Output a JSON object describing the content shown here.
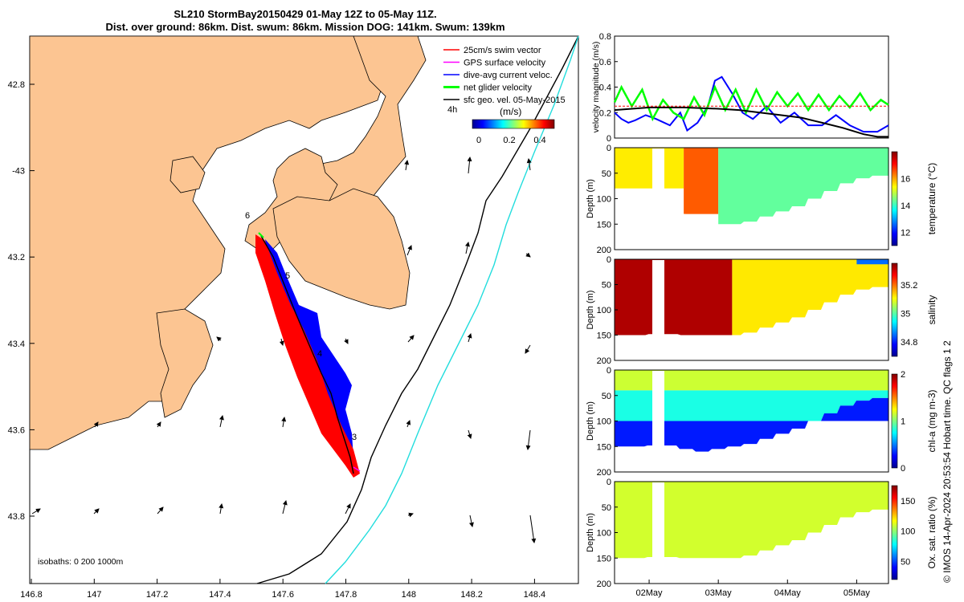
{
  "title_line1": "SL210 StormBay20150429 01-May 12Z to 05-May 11Z.",
  "title_line2": "Dist. over ground: 86km. Dist. swum: 86km. Mission DOG: 141km. Swum: 139km",
  "map": {
    "lon_ticks": [
      "146.8",
      "147",
      "147.2",
      "147.4",
      "147.6",
      "147.8",
      "148",
      "148.2",
      "148.4"
    ],
    "lat_ticks": [
      "42.8",
      "-43",
      "43.2",
      "43.4",
      "43.6",
      "43.8"
    ],
    "legend": [
      {
        "label": "25cm/s swim vector",
        "color": "#ff0000"
      },
      {
        "label": "GPS surface velocity",
        "color": "#ff00ff"
      },
      {
        "label": "dive-avg current veloc.",
        "color": "#0000ff"
      },
      {
        "label": "net glider velocity",
        "color": "#00ff00"
      },
      {
        "label": "sfc geo. vel. 05-May-2015",
        "color": "#000000"
      }
    ],
    "colorbar_label_left": "4h",
    "colorbar_units": "(m/s)",
    "colorbar_ticks": [
      "0",
      "0.2",
      "0.4"
    ],
    "day_labels": [
      "6",
      "5",
      "4",
      "3"
    ],
    "isobath_text": "isobaths: 0   200  1000m"
  },
  "chart_data": [
    {
      "type": "line",
      "title": "velocity magnitude",
      "ylabel": "velocity magnitude (m/s)",
      "ylim": [
        0,
        0.8
      ],
      "yticks": [
        "0",
        "0.2",
        "0.4",
        "0.6",
        "0.8"
      ],
      "xlim_days": [
        1.5,
        5.46
      ],
      "series": [
        {
          "name": "dive-avg current veloc.",
          "color": "#0000ff",
          "x": [
            1.5,
            1.6,
            1.7,
            1.8,
            1.95,
            2.1,
            2.3,
            2.45,
            2.55,
            2.7,
            2.85,
            2.95,
            3.05,
            3.2,
            3.35,
            3.5,
            3.7,
            3.9,
            4.1,
            4.3,
            4.5,
            4.7,
            4.9,
            5.1,
            5.3,
            5.46
          ],
          "y": [
            0.2,
            0.15,
            0.12,
            0.14,
            0.18,
            0.15,
            0.1,
            0.2,
            0.06,
            0.12,
            0.25,
            0.45,
            0.48,
            0.35,
            0.2,
            0.15,
            0.25,
            0.12,
            0.2,
            0.1,
            0.1,
            0.18,
            0.1,
            0.05,
            0.05,
            0.1
          ]
        },
        {
          "name": "net glider velocity",
          "color": "#00ff00",
          "x": [
            1.5,
            1.6,
            1.75,
            1.9,
            2.05,
            2.2,
            2.35,
            2.5,
            2.65,
            2.8,
            2.95,
            3.1,
            3.25,
            3.4,
            3.55,
            3.7,
            3.85,
            4.0,
            4.15,
            4.3,
            4.45,
            4.6,
            4.75,
            4.9,
            5.05,
            5.2,
            5.35,
            5.46
          ],
          "y": [
            0.28,
            0.4,
            0.25,
            0.38,
            0.15,
            0.3,
            0.2,
            0.15,
            0.32,
            0.18,
            0.4,
            0.22,
            0.38,
            0.2,
            0.38,
            0.22,
            0.36,
            0.25,
            0.35,
            0.22,
            0.34,
            0.22,
            0.33,
            0.24,
            0.35,
            0.22,
            0.3,
            0.26
          ]
        },
        {
          "name": "sfc geo. vel.",
          "color": "#000000",
          "x": [
            1.5,
            2.0,
            2.5,
            3.0,
            3.3,
            3.6,
            3.9,
            4.2,
            4.5,
            4.8,
            5.1,
            5.3,
            5.46
          ],
          "y": [
            0.22,
            0.24,
            0.24,
            0.23,
            0.22,
            0.2,
            0.18,
            0.16,
            0.12,
            0.08,
            0.03,
            0.01,
            0.01
          ]
        },
        {
          "name": "25cm/s swim vector",
          "color": "#ff0000",
          "x": [
            1.5,
            5.46
          ],
          "y": [
            0.25,
            0.25
          ]
        }
      ],
      "xtick_labels": [
        "02May",
        "03May",
        "04May",
        "05May"
      ]
    },
    {
      "type": "heatmap",
      "ylabel": "Depth (m)",
      "ylim": [
        200,
        0
      ],
      "yticks": [
        "0",
        "50",
        "100",
        "150",
        "200"
      ],
      "colorbar_label": "temperature (°C)",
      "colorbar_ticks": [
        "12",
        "14",
        "16"
      ],
      "colorbar_range": [
        11,
        18
      ],
      "bottom_depth": [
        150,
        150,
        148,
        148,
        155,
        160,
        155,
        150,
        145,
        135,
        125,
        115,
        100,
        85,
        70,
        60,
        55
      ],
      "regions": [
        {
          "x_from": 1.5,
          "x_to": 2.5,
          "depth_from": 0,
          "depth_to": 80,
          "value": 15.5
        },
        {
          "x_from": 2.5,
          "x_to": 3.0,
          "depth_from": 0,
          "depth_to": 130,
          "value": 16.5
        },
        {
          "x_from": 3.0,
          "x_to": 5.46,
          "depth_from": 0,
          "depth_to": 150,
          "value": 14.3
        }
      ]
    },
    {
      "type": "heatmap",
      "ylabel": "Depth (m)",
      "ylim": [
        200,
        0
      ],
      "yticks": [
        "0",
        "50",
        "100",
        "150",
        "200"
      ],
      "colorbar_label": "salinity",
      "colorbar_ticks": [
        "34.8",
        "35",
        "35.2"
      ],
      "colorbar_range": [
        34.7,
        35.35
      ],
      "bottom_depth": [
        150,
        150,
        148,
        148,
        155,
        160,
        155,
        150,
        145,
        135,
        125,
        115,
        100,
        85,
        70,
        60,
        55
      ],
      "regions": [
        {
          "x_from": 1.5,
          "x_to": 3.2,
          "depth_from": 0,
          "depth_to": 150,
          "value": 35.32
        },
        {
          "x_from": 3.2,
          "x_to": 5.46,
          "depth_from": 0,
          "depth_to": 150,
          "value": 35.12
        },
        {
          "x_from": 5.0,
          "x_to": 5.46,
          "depth_from": 0,
          "depth_to": 10,
          "value": 34.85
        }
      ]
    },
    {
      "type": "heatmap",
      "ylabel": "Depth (m)",
      "ylim": [
        200,
        0
      ],
      "yticks": [
        "0",
        "50",
        "100",
        "150",
        "200"
      ],
      "colorbar_label": "chl-a (mg m-3)",
      "colorbar_ticks": [
        "0",
        "1",
        "2"
      ],
      "colorbar_range": [
        0,
        2
      ],
      "bottom_depth": [
        150,
        150,
        148,
        148,
        155,
        160,
        155,
        150,
        145,
        135,
        125,
        115,
        100,
        85,
        70,
        60,
        55
      ],
      "regions": [
        {
          "x_from": 1.5,
          "x_to": 5.46,
          "depth_from": 0,
          "depth_to": 40,
          "value": 1.15
        },
        {
          "x_from": 1.5,
          "x_to": 5.46,
          "depth_from": 40,
          "depth_to": 100,
          "value": 0.8
        },
        {
          "x_from": 1.5,
          "x_to": 5.46,
          "depth_from": 100,
          "depth_to": 160,
          "value": 0.3
        }
      ]
    },
    {
      "type": "heatmap",
      "ylabel": "Depth (m)",
      "ylim": [
        200,
        0
      ],
      "yticks": [
        "0",
        "50",
        "100",
        "150",
        "200"
      ],
      "colorbar_label": "Ox. sat. ratio (%)",
      "colorbar_ticks": [
        "50",
        "100",
        "150"
      ],
      "colorbar_range": [
        20,
        175
      ],
      "bottom_depth": [
        150,
        150,
        148,
        148,
        155,
        160,
        155,
        150,
        145,
        135,
        125,
        115,
        100,
        85,
        70,
        60,
        55
      ],
      "regions": [
        {
          "x_from": 1.5,
          "x_to": 5.46,
          "depth_from": 0,
          "depth_to": 150,
          "value": 110
        }
      ]
    }
  ],
  "side_credit": "© IMOS 14-Apr-2024 20:53:54 Hobart time. QC flags 1  2"
}
